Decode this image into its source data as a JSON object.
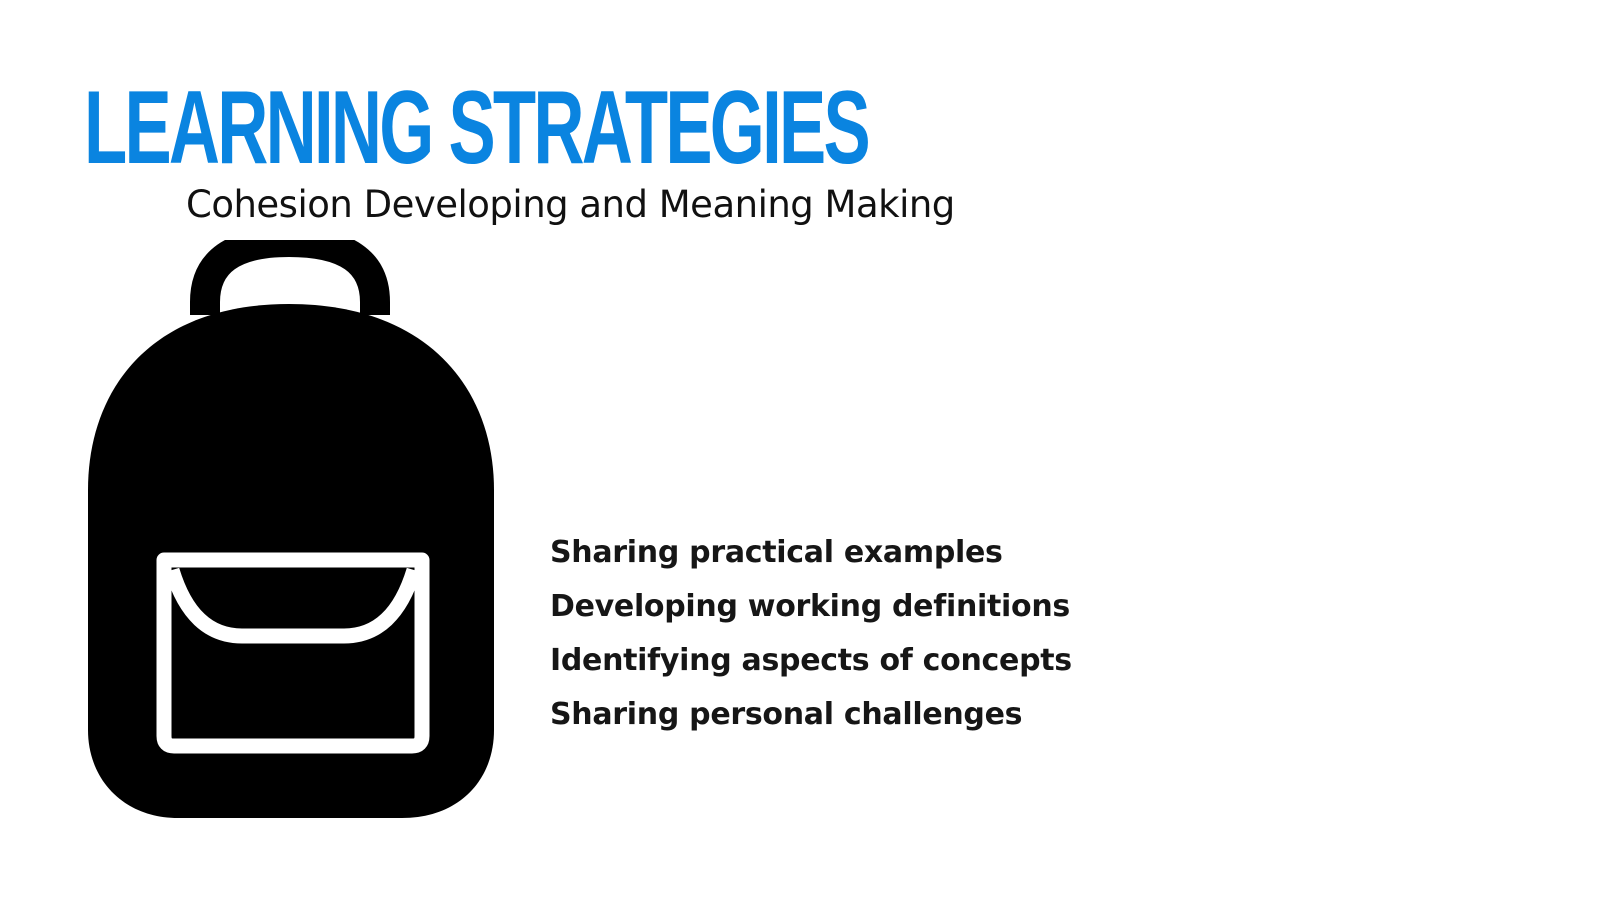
{
  "slide": {
    "title": "LEARNING STRATEGIES",
    "subtitle": "Cohesion Developing and Meaning Making",
    "icon": "backpack-icon",
    "accent_color": "#0a84e0",
    "points": [
      "Sharing practical examples",
      "Developing working definitions",
      "Identifying aspects of concepts",
      "Sharing personal challenges"
    ]
  }
}
